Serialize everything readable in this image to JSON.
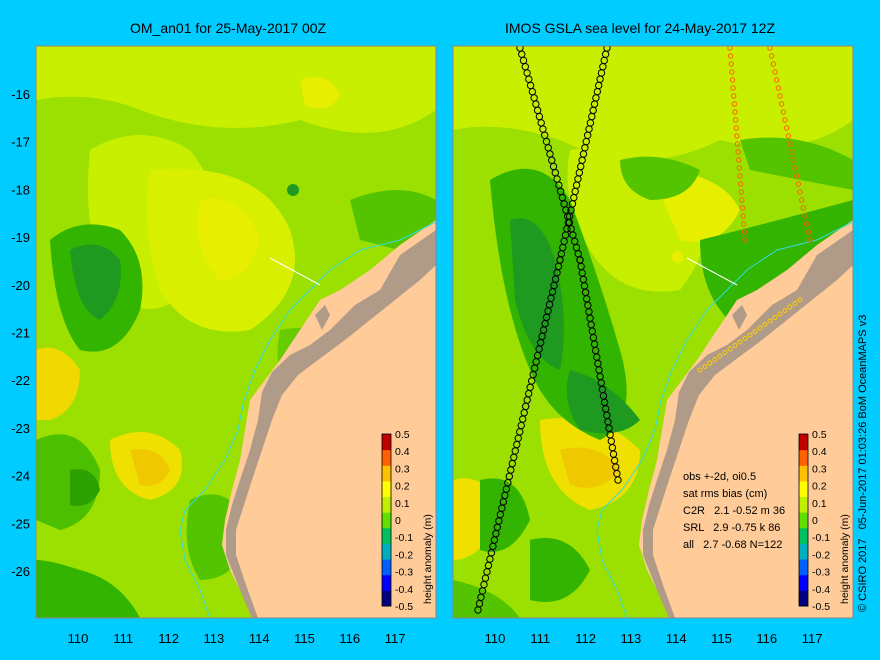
{
  "panels": {
    "left": {
      "title": "OM_an01 for 25-May-2017 00Z"
    },
    "right": {
      "title": "IMOS GSLA sea level  for 24-May-2017 12Z"
    }
  },
  "axes": {
    "lat_labels": [
      "-16",
      "-17",
      "-18",
      "-19",
      "-20",
      "-21",
      "-22",
      "-23",
      "-24",
      "-25",
      "-26"
    ],
    "lon_labels": [
      "110",
      "111",
      "112",
      "113",
      "114",
      "115",
      "116",
      "117"
    ]
  },
  "colorbar": {
    "label": "height anomaly (m)",
    "ticks": [
      "0.5",
      "0.4",
      "0.3",
      "0.2",
      "0.1",
      "0",
      "-0.1",
      "-0.2",
      "-0.3",
      "-0.4",
      "-0.5"
    ],
    "colors": [
      "#000080",
      "#0000ff",
      "#0060ff",
      "#00b0c0",
      "#00c060",
      "#60e000",
      "#c0f000",
      "#ffff00",
      "#ffc000",
      "#ff6000",
      "#c00000"
    ]
  },
  "stats": {
    "line1": "obs +-2d, oi0.5",
    "line2": "sat rms bias (cm)",
    "line3": "C2R   2.1 -0.52 m 36",
    "line4": "SRL   2.9 -0.75 k 86",
    "line5": "all   2.7 -0.68 N=122"
  },
  "credit": "© CSIRO 2017   05-Jun-2017 01:03:26 BoM OceanMAPS v3",
  "colors": {
    "background": "#00ccff",
    "land": "#ffcc99",
    "coastal_shelf": "#b09a88",
    "isobath": "#33dddd"
  }
}
